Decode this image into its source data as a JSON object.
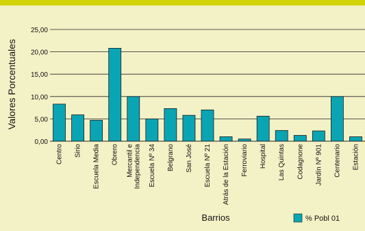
{
  "colors": {
    "background": "#f3f1c6",
    "top_bar": "#d2d40a",
    "bar_fill": "#0aa5b4",
    "bar_stroke": "#1a1a1a"
  },
  "chart_data": {
    "type": "bar",
    "ylabel": "Valores Porcentuales",
    "xlabel": "Barrios",
    "ylim": [
      0,
      25
    ],
    "y_ticks": [
      0,
      5,
      10,
      15,
      20,
      25
    ],
    "y_tick_labels": [
      "0,00",
      "5,00",
      "10,00",
      "15,00",
      "20,00",
      "25,00"
    ],
    "grid": "horizontal",
    "legend": "bottom-right",
    "categories": [
      [
        "Centro"
      ],
      [
        "Sirio"
      ],
      [
        "Escuela Media"
      ],
      [
        "Obrero"
      ],
      [
        "Mercantil e",
        "Independencia"
      ],
      [
        "Escuela Nº 34"
      ],
      [
        "Belgrano"
      ],
      [
        "San José"
      ],
      [
        "Escuela Nº 21"
      ],
      [
        "Atrás de la Estación"
      ],
      [
        "Ferroviario"
      ],
      [
        "Hospital"
      ],
      [
        "Las Quintas"
      ],
      [
        "Codagnone"
      ],
      [
        "Jardín Nº 901"
      ],
      [
        "Centenario"
      ],
      [
        "Estación"
      ]
    ],
    "series": [
      {
        "name": "% Pobl 01",
        "values": [
          8.3,
          5.9,
          4.7,
          20.8,
          10.0,
          5.0,
          7.3,
          5.8,
          7.0,
          1.0,
          0.5,
          5.6,
          2.4,
          1.3,
          2.3,
          10.0,
          1.0
        ]
      }
    ]
  }
}
